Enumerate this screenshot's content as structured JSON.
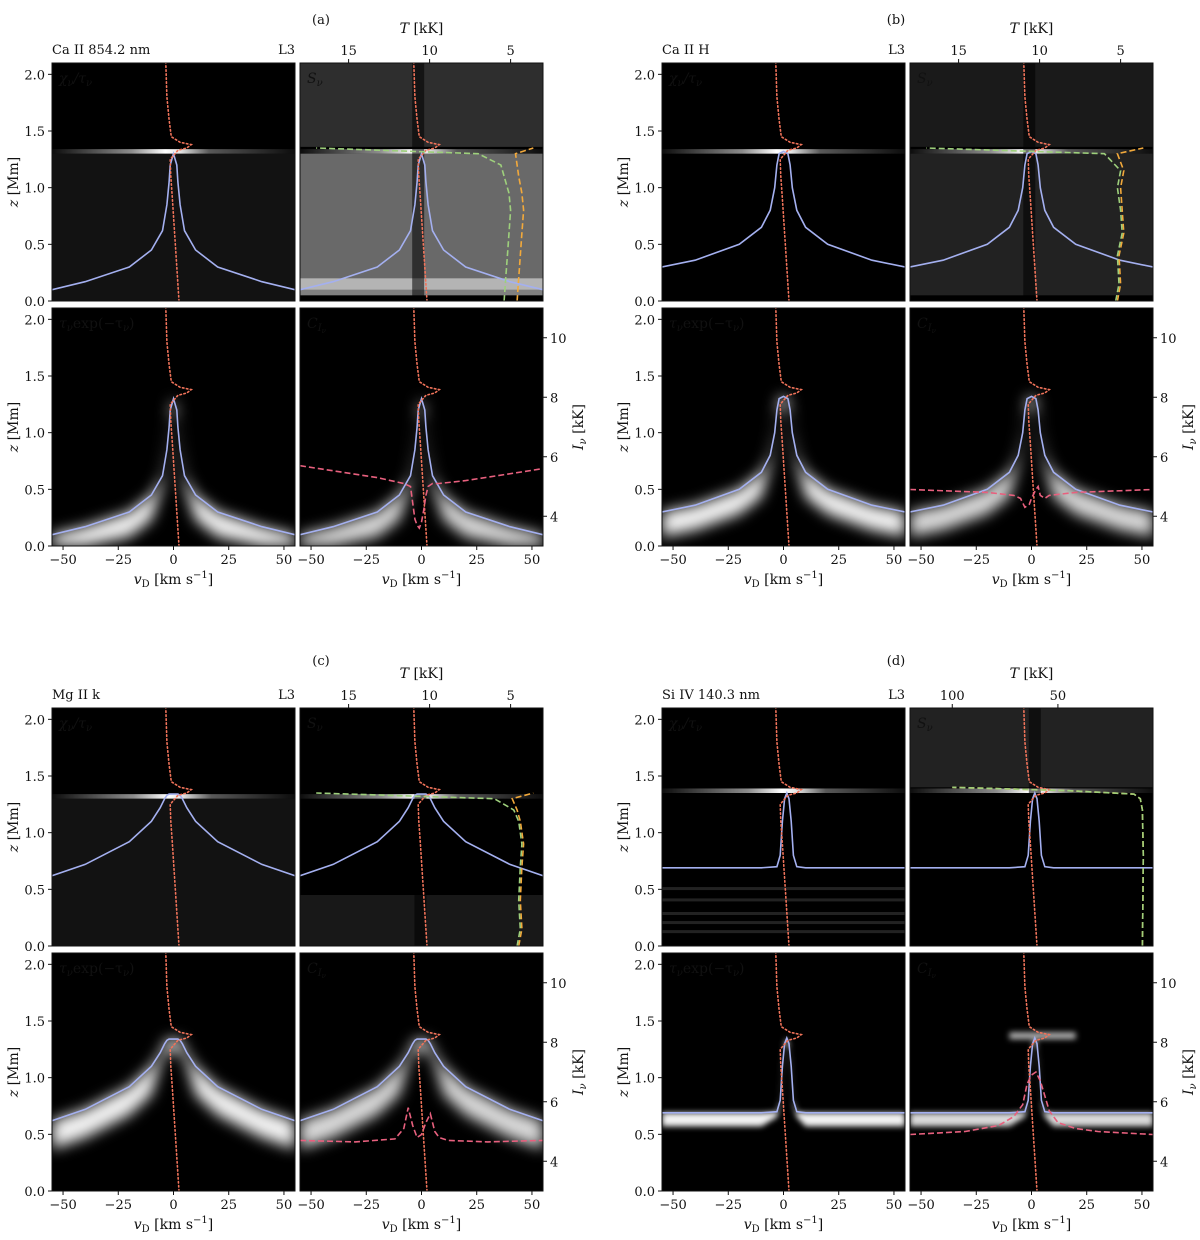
{
  "figure": {
    "quadrants": [
      {
        "label": "(a)",
        "line": "Ca II 854.2 nm",
        "model": "L3",
        "temperature_axis": {
          "label": "T  [kK]",
          "ticks": [
            15,
            10,
            5
          ],
          "range": [
            18,
            3
          ]
        },
        "lower_panel_stroke": "#e8607e",
        "cores": {
          "chi_w": 1.6,
          "chi_o": -1.5,
          "c_w": 2.5,
          "c_o": -0.2,
          "pu_w": 3.8
        },
        "chart_data": {
          "type": "heatmap",
          "panels": [
            "χν/τν",
            "Sν",
            "τν exp(−τν)",
            "C_Iν"
          ],
          "xlabel": "vD  [km s⁻¹]",
          "ylabel": "z [Mm]",
          "xlim": [
            -55,
            55
          ],
          "ylim": [
            0,
            2.1
          ],
          "xticks": [
            -50,
            -25,
            0,
            25,
            50
          ],
          "yticks": [
            0.0,
            0.5,
            1.0,
            1.5,
            2.0
          ],
          "right_ylabel": "Iν  [kK]",
          "right_yticks": [
            4,
            6,
            8,
            10
          ],
          "right_ylim": [
            3,
            11
          ],
          "tau_unity": {
            "v": [
              -55,
              -40,
              -20,
              -10,
              -5,
              -3,
              -2,
              -1.5,
              0,
              1.5,
              2,
              3,
              5,
              10,
              20,
              40,
              55
            ],
            "z": [
              0.1,
              0.17,
              0.3,
              0.45,
              0.62,
              0.85,
              1.05,
              1.2,
              1.3,
              1.2,
              1.05,
              0.85,
              0.62,
              0.45,
              0.3,
              0.17,
              0.1
            ]
          },
          "velocity_profile": {
            "z": [
              0.0,
              0.3,
              0.6,
              0.9,
              1.1,
              1.25,
              1.33,
              1.35,
              1.38,
              1.4,
              1.45,
              1.6,
              1.8,
              2.1
            ],
            "v": [
              2.5,
              1.5,
              0.5,
              -0.5,
              -1.2,
              -1.5,
              2,
              6,
              8,
              3,
              -1,
              -2,
              -3,
              -3.5
            ]
          },
          "temperature": {
            "z": [
              0.0,
              0.2,
              0.4,
              0.6,
              0.8,
              0.95,
              1.1,
              1.2,
              1.3,
              1.35
            ],
            "T": [
              4.6,
              4.5,
              4.4,
              4.3,
              4.2,
              4.3,
              4.5,
              4.6,
              4.7,
              3.6
            ]
          },
          "source_function": {
            "z": [
              0.0,
              0.2,
              0.4,
              0.6,
              0.8,
              0.95,
              1.1,
              1.2,
              1.3,
              1.35
            ],
            "T": [
              5.4,
              5.3,
              5.2,
              5.1,
              5.0,
              5.1,
              5.4,
              5.6,
              7.0,
              17.0
            ]
          },
          "intensity_profile": {
            "v": [
              -55,
              -20,
              -8,
              -5,
              -3,
              -2,
              -1,
              0,
              1,
              2,
              3,
              5,
              8,
              20,
              55
            ],
            "I": [
              5.7,
              5.3,
              5.1,
              5.0,
              3.9,
              3.7,
              3.6,
              3.8,
              4.2,
              4.7,
              5.0,
              5.1,
              5.1,
              5.2,
              5.6
            ]
          }
        }
      },
      {
        "label": "(b)",
        "line": "Ca II H",
        "model": "L3",
        "temperature_axis": {
          "label": "T  [kK]",
          "ticks": [
            15,
            10,
            5
          ],
          "range": [
            18,
            3
          ]
        },
        "lower_panel_stroke": "#e8607e",
        "cores": {
          "chi_w": 2.5,
          "chi_o": -1,
          "c_w": 3.5,
          "c_o": 0.5,
          "pu_w": 5.5
        },
        "chart_data": {
          "type": "heatmap",
          "panels": [
            "χν/τν",
            "Sν",
            "τν exp(−τν)",
            "C_Iν"
          ],
          "xlabel": "vD  [km s⁻¹]",
          "ylabel": "z [Mm]",
          "xlim": [
            -55,
            55
          ],
          "ylim": [
            0,
            2.1
          ],
          "xticks": [
            -50,
            -25,
            0,
            25,
            50
          ],
          "yticks": [
            0.0,
            0.5,
            1.0,
            1.5,
            2.0
          ],
          "right_ylabel": "Iν  [kK]",
          "right_yticks": [
            4,
            6,
            8,
            10
          ],
          "right_ylim": [
            3,
            11
          ],
          "tau_unity": {
            "v": [
              -55,
              -40,
              -20,
              -10,
              -6,
              -4,
              -3,
              -2,
              0,
              2,
              3,
              4,
              6,
              10,
              20,
              40,
              55
            ],
            "z": [
              0.3,
              0.36,
              0.5,
              0.65,
              0.8,
              1.0,
              1.2,
              1.3,
              1.32,
              1.3,
              1.2,
              1.0,
              0.8,
              0.65,
              0.5,
              0.36,
              0.3
            ]
          },
          "velocity_profile": {
            "z": [
              0.0,
              0.3,
              0.6,
              0.9,
              1.1,
              1.25,
              1.33,
              1.35,
              1.38,
              1.4,
              1.45,
              1.6,
              1.8,
              2.1
            ],
            "v": [
              2.5,
              1.5,
              0.5,
              -0.5,
              -1.2,
              -1.5,
              2,
              6,
              8,
              3,
              -1,
              -2,
              -3,
              -3.5
            ]
          },
          "temperature": {
            "z": [
              0.0,
              0.15,
              0.4,
              0.6,
              0.8,
              1.0,
              1.15,
              1.3,
              1.35
            ],
            "T": [
              5.2,
              5.0,
              5.1,
              4.8,
              4.9,
              5.0,
              4.8,
              5.2,
              3.6
            ]
          },
          "source_function": {
            "z": [
              0.0,
              0.15,
              0.4,
              0.6,
              0.8,
              1.0,
              1.15,
              1.3,
              1.35
            ],
            "T": [
              5.3,
              5.1,
              5.2,
              4.9,
              5.0,
              5.2,
              5.0,
              6.0,
              17.0
            ]
          },
          "intensity_profile": {
            "v": [
              -55,
              -20,
              -8,
              -5,
              -3,
              -1,
              0,
              2,
              3,
              4,
              6,
              8,
              20,
              55
            ],
            "I": [
              4.9,
              4.8,
              4.7,
              4.6,
              4.3,
              4.4,
              4.6,
              4.9,
              5.0,
              4.7,
              4.6,
              4.7,
              4.8,
              4.9
            ]
          }
        }
      },
      {
        "label": "(c)",
        "line": "Mg II k",
        "model": "L3",
        "temperature_axis": {
          "label": "T  [kK]",
          "ticks": [
            15,
            10,
            5
          ],
          "range": [
            18,
            3
          ]
        },
        "lower_panel_stroke": "#e8607e",
        "cores": {
          "chi_w": 3.5,
          "chi_o": -0.5,
          "c_w": 4,
          "c_o": 0,
          "pu_w": 7
        },
        "chart_data": {
          "type": "heatmap",
          "panels": [
            "χν/τν",
            "Sν",
            "τν exp(−τν)",
            "C_Iν"
          ],
          "xlabel": "vD  [km s⁻¹]",
          "ylabel": "z [Mm]",
          "xlim": [
            -55,
            55
          ],
          "ylim": [
            0,
            2.1
          ],
          "xticks": [
            -50,
            -25,
            0,
            25,
            50
          ],
          "yticks": [
            0.0,
            0.5,
            1.0,
            1.5,
            2.0
          ],
          "right_ylabel": "Iν  [kK]",
          "right_yticks": [
            4,
            6,
            8,
            10
          ],
          "right_ylim": [
            3,
            11
          ],
          "tau_unity": {
            "v": [
              -55,
              -40,
              -20,
              -10,
              -6,
              -4,
              -3,
              -2,
              0,
              2,
              3,
              4,
              6,
              10,
              20,
              40,
              55
            ],
            "z": [
              0.62,
              0.72,
              0.92,
              1.1,
              1.22,
              1.3,
              1.33,
              1.34,
              1.34,
              1.34,
              1.33,
              1.3,
              1.22,
              1.1,
              0.92,
              0.72,
              0.62
            ]
          },
          "velocity_profile": {
            "z": [
              0.0,
              0.3,
              0.6,
              0.9,
              1.1,
              1.25,
              1.33,
              1.35,
              1.38,
              1.4,
              1.45,
              1.6,
              1.8,
              2.1
            ],
            "v": [
              2.5,
              1.5,
              0.5,
              -0.5,
              -1.2,
              -1.5,
              2,
              6,
              8,
              3,
              -1,
              -2,
              -3,
              -3.5
            ]
          },
          "temperature": {
            "z": [
              0.0,
              0.15,
              0.4,
              0.7,
              0.9,
              1.1,
              1.2,
              1.3,
              1.35
            ],
            "T": [
              4.5,
              4.3,
              4.4,
              4.3,
              4.2,
              4.4,
              4.6,
              4.9,
              3.6
            ]
          },
          "source_function": {
            "z": [
              0.0,
              0.15,
              0.4,
              0.7,
              0.9,
              1.1,
              1.2,
              1.3,
              1.35
            ],
            "T": [
              4.6,
              4.4,
              4.5,
              4.4,
              4.3,
              4.5,
              4.8,
              6.0,
              17.0
            ]
          },
          "intensity_profile": {
            "v": [
              -55,
              -30,
              -12,
              -8,
              -6,
              -4,
              -2,
              0,
              2,
              4,
              6,
              8,
              12,
              30,
              55
            ],
            "I": [
              4.7,
              4.65,
              4.75,
              5.1,
              5.8,
              5.2,
              4.8,
              4.9,
              5.3,
              5.6,
              5.0,
              4.8,
              4.7,
              4.65,
              4.7
            ]
          }
        }
      },
      {
        "label": "(d)",
        "line": "Si IV 140.3 nm",
        "model": "L3",
        "temperature_axis": {
          "label": "T  [kK]",
          "ticks": [
            100,
            50
          ],
          "range": [
            120,
            5
          ]
        },
        "lower_panel_stroke": "#e8607e",
        "cores": {
          "chi_w": 1.4,
          "chi_o": 1.5,
          "c_w": 1.5,
          "c_o": 2,
          "pu_w": 0.5
        },
        "chart_data": {
          "type": "heatmap",
          "panels": [
            "χν/τν",
            "Sν",
            "τν exp(−τν)",
            "C_Iν"
          ],
          "xlabel": "vD  [km s⁻¹]",
          "ylabel": "z [Mm]",
          "xlim": [
            -55,
            55
          ],
          "ylim": [
            0,
            2.1
          ],
          "xticks": [
            -50,
            -25,
            0,
            25,
            50
          ],
          "yticks": [
            0.0,
            0.5,
            1.0,
            1.5,
            2.0
          ],
          "right_ylabel": "Iν  [kK]",
          "right_yticks": [
            4,
            6,
            8,
            10
          ],
          "right_ylim": [
            3,
            11
          ],
          "tau_unity": {
            "v": [
              -55,
              -10,
              -3,
              -1.5,
              -0.5,
              0.5,
              1.5,
              2.5,
              3.5,
              4.5,
              6,
              10,
              55
            ],
            "z": [
              0.69,
              0.69,
              0.7,
              0.8,
              1.1,
              1.3,
              1.35,
              1.3,
              1.1,
              0.8,
              0.7,
              0.69,
              0.69
            ]
          },
          "velocity_profile": {
            "z": [
              0.0,
              0.3,
              0.6,
              0.9,
              1.1,
              1.25,
              1.33,
              1.35,
              1.38,
              1.4,
              1.45,
              1.6,
              1.8,
              2.1
            ],
            "v": [
              2.5,
              1.5,
              0.5,
              -0.5,
              -1.2,
              -1.5,
              2,
              6,
              8,
              3,
              -1,
              -2,
              -3,
              -3.5
            ]
          },
          "temperature": {
            "z": [
              0.0,
              0.4,
              0.8,
              1.2,
              1.3,
              1.34,
              1.37,
              1.4
            ],
            "T": [
              10,
              9.8,
              9.6,
              10,
              11,
              14,
              45,
              100
            ]
          },
          "source_function": {
            "z": [
              0.0,
              0.4,
              0.8,
              1.2,
              1.3,
              1.34,
              1.37,
              1.4
            ],
            "T": [
              10,
              9.8,
              9.6,
              10,
              11,
              14,
              45,
              100
            ]
          },
          "intensity_profile": {
            "v": [
              -55,
              -30,
              -15,
              -8,
              -4,
              -2,
              0,
              2,
              4,
              6,
              8,
              12,
              20,
              30,
              55
            ],
            "I": [
              4.9,
              5.0,
              5.2,
              5.5,
              5.9,
              6.6,
              6.9,
              7.0,
              6.7,
              6.2,
              5.7,
              5.3,
              5.1,
              5.0,
              4.9
            ]
          }
        }
      }
    ]
  }
}
